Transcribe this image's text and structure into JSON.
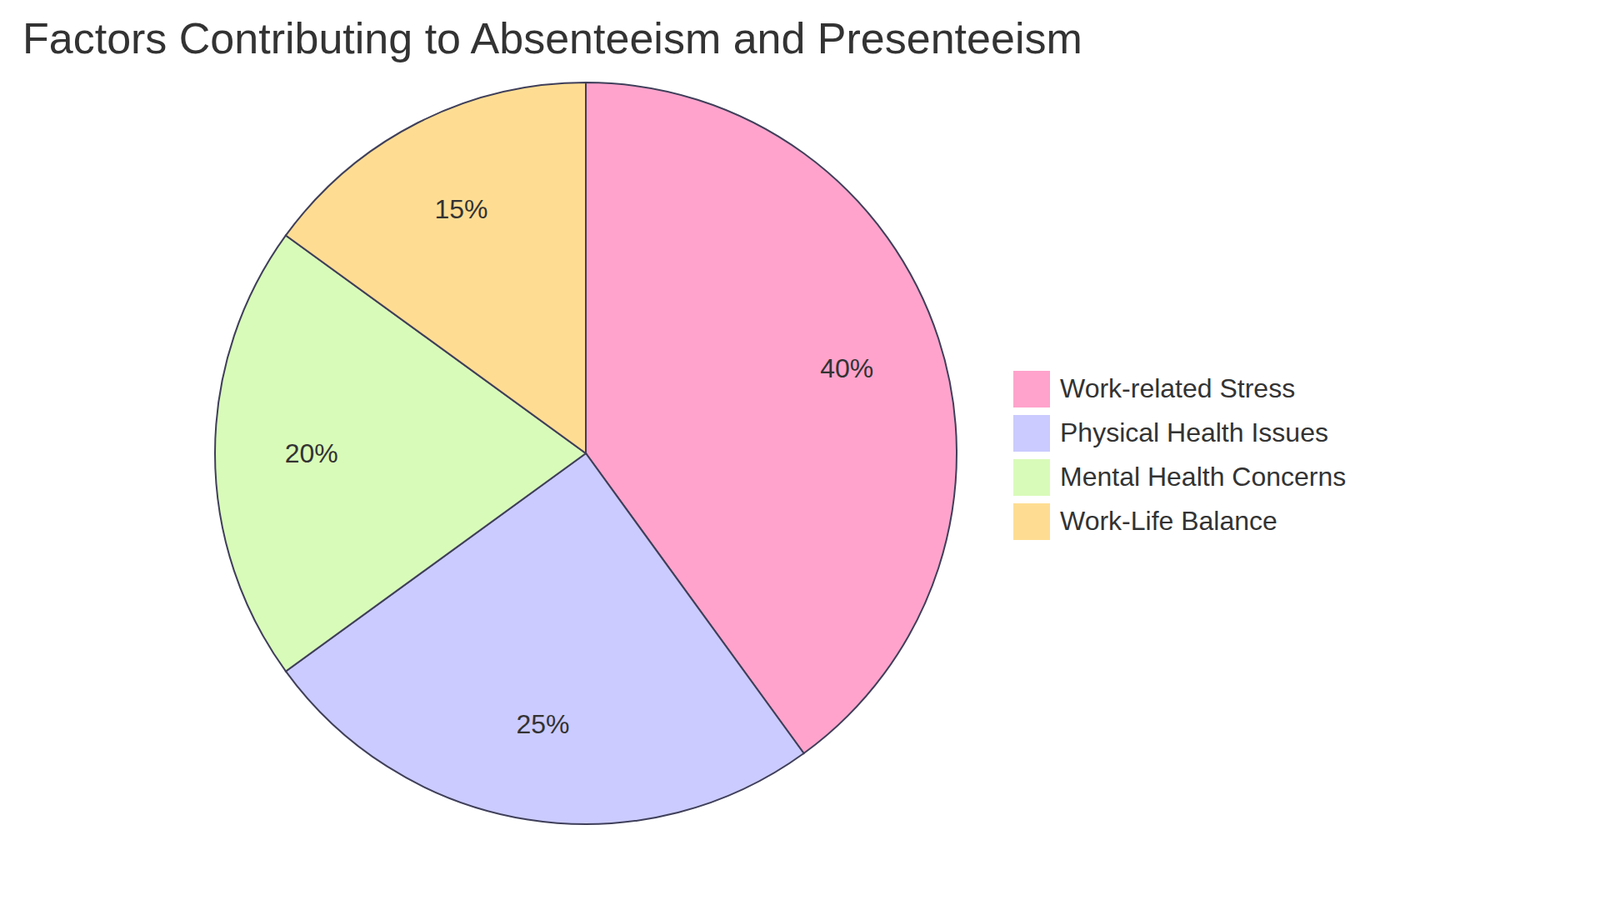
{
  "chart_data": {
    "type": "pie",
    "title": "Factors Contributing to Absenteeism and Presenteeism",
    "categories": [
      "Work-related Stress",
      "Physical Health Issues",
      "Mental Health Concerns",
      "Work-Life Balance"
    ],
    "values": [
      40,
      25,
      20,
      15
    ],
    "value_labels": [
      "40%",
      "25%",
      "20%",
      "15%"
    ],
    "colors": [
      "#ffa3cc",
      "#cbcbff",
      "#d9fbb9",
      "#fedd93"
    ],
    "data_labels": true,
    "legend": "right"
  }
}
